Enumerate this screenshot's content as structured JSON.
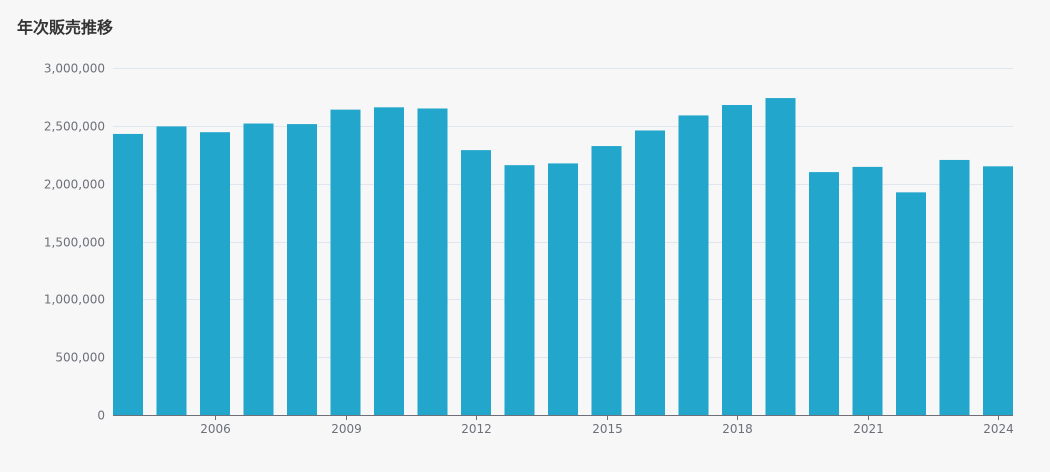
{
  "chart_data": {
    "type": "bar",
    "title": "年次販売推移",
    "xlabel": "",
    "ylabel": "",
    "x": [
      2004,
      2005,
      2006,
      2007,
      2008,
      2009,
      2010,
      2011,
      2012,
      2013,
      2014,
      2015,
      2016,
      2017,
      2018,
      2019,
      2020,
      2021,
      2022,
      2023,
      2024
    ],
    "values": [
      2430000,
      2495000,
      2445000,
      2520000,
      2515000,
      2640000,
      2660000,
      2650000,
      2290000,
      2160000,
      2175000,
      2325000,
      2460000,
      2590000,
      2680000,
      2740000,
      2100000,
      2145000,
      1925000,
      2205000,
      2150000
    ],
    "ylim": [
      0,
      3000000
    ],
    "yticks": [
      0,
      500000,
      1000000,
      1500000,
      2000000,
      2500000,
      3000000
    ],
    "ytick_labels": [
      "0",
      "500,000",
      "1,000,000",
      "1,500,000",
      "2,000,000",
      "2,500,000",
      "3,000,000"
    ],
    "xticks": [
      "2006",
      "2009",
      "2012",
      "2015",
      "2018",
      "2021",
      "2024"
    ],
    "grid": true,
    "bar_color": "#22a6cb"
  }
}
